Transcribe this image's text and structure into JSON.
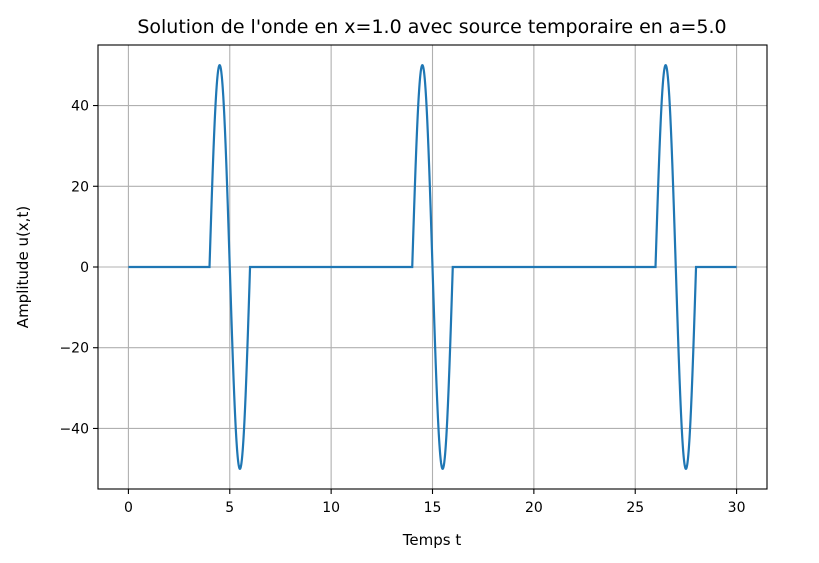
{
  "chart_data": {
    "type": "line",
    "title": "Solution de l'onde en x=1.0 avec source temporaire en a=5.0",
    "xlabel": "Temps t",
    "ylabel": "Amplitude u(x,t)",
    "xlim": [
      -1.5,
      31.5
    ],
    "ylim": [
      -55,
      55
    ],
    "xticks": [
      0,
      5,
      10,
      15,
      20,
      25,
      30
    ],
    "yticks": [
      -40,
      -20,
      0,
      20,
      40
    ],
    "xtick_labels": [
      "0",
      "5",
      "10",
      "15",
      "20",
      "25",
      "30"
    ],
    "ytick_labels": [
      "−40",
      "−20",
      "0",
      "20",
      "40"
    ],
    "grid": true,
    "series": [
      {
        "color": "#1f77b4",
        "pulses": [
          {
            "t_start": 4,
            "t_end": 6,
            "amplitude": 50
          },
          {
            "t_start": 14,
            "t_end": 16,
            "amplitude": 50
          },
          {
            "t_start": 26,
            "t_end": 28,
            "amplitude": 50
          }
        ],
        "t_min": 0,
        "t_max": 30
      }
    ]
  }
}
